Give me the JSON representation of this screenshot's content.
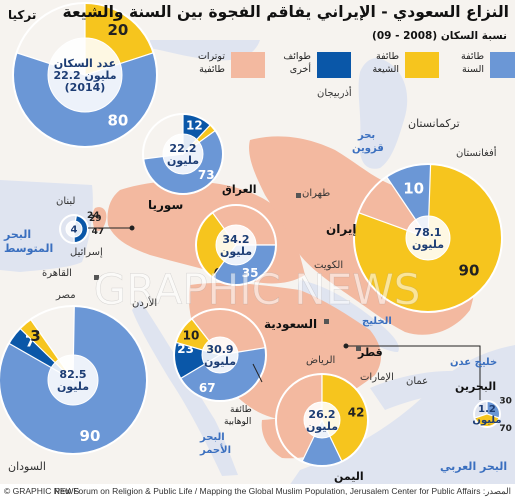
{
  "header": {
    "title": "النزاع السعودي - الإيراني يفاقم الفجوة بين السنة والشيعة",
    "subtitle": "نسبة السكان (2008 - 09)"
  },
  "legend": [
    {
      "label_1": "طائفة",
      "label_2": "السنة",
      "color": "#6b97d6"
    },
    {
      "label_1": "طائفة",
      "label_2": "الشيعة",
      "color": "#f6c51e"
    },
    {
      "label_1": "طوائف",
      "label_2": "أخرى",
      "color": "#0a57a8"
    },
    {
      "label_1": "توترات",
      "label_2": "طائفية",
      "color": "#f3b9a0"
    }
  ],
  "colors": {
    "sunni": "#6b97d6",
    "shia": "#f6c51e",
    "other": "#0a57a8",
    "tension": "#f3b9a0",
    "sea": "#dfe4f0",
    "land": "#f6f3ef"
  },
  "map_labels": {
    "turkey": "تركيا",
    "azerbaijan": "أذربيجان",
    "turkmenistan": "تركمانستان",
    "caspian_1": "بحر",
    "caspian_2": "قزوين",
    "afghanistan": "أفغانستان",
    "lebanon": "لبنان",
    "syria": "سوريا",
    "iraq": "العراق",
    "tehran": "طهران",
    "iran": "إيران",
    "med_1": "البحر",
    "med_2": "المتوسط",
    "israel": "إسرائيل",
    "cairo": "القاهرة",
    "egypt": "مصر",
    "jordan": "الأردن",
    "kuwait": "الكويت",
    "gulf": "الخليج",
    "saudi": "السعودية",
    "qatar": "قطر",
    "riyadh": "الرياض",
    "uae": "الإمارات",
    "oman": "عمان",
    "gulf_aden": "خليج عدن",
    "bahrain": "البحرين",
    "red_sea_1": "البحر",
    "red_sea_2": "الأحمر",
    "sudan": "السودان",
    "yemen": "اليمن",
    "arab_sea": "البحر العربي",
    "wahhabi_1": "طائفة",
    "wahhabi_2": "الوهابية"
  },
  "chart_data": [
    {
      "type": "pie",
      "country": "تركيا",
      "categories": [
        "السنة",
        "الشيعة"
      ],
      "values": [
        80,
        20
      ],
      "center_1": "عدد السكان",
      "center_2": "22.2 مليون",
      "center_3": "(2014)"
    },
    {
      "type": "pie",
      "country": "سوريا",
      "categories": [
        "السنة",
        "الشيعة",
        "طوائف أخرى"
      ],
      "values": [
        73,
        15,
        12
      ],
      "center_1": "22.2",
      "center_2": "مليون"
    },
    {
      "type": "pie",
      "country": "العراق",
      "categories": [
        "الشيعة",
        "السنة"
      ],
      "values": [
        65,
        35
      ],
      "center_1": "34.2",
      "center_2": "مليون"
    },
    {
      "type": "pie",
      "country": "إيران",
      "categories": [
        "الشيعة",
        "السنة"
      ],
      "values": [
        90,
        10
      ],
      "center_1": "78.1",
      "center_2": "مليون"
    },
    {
      "type": "pie",
      "country": "لبنان",
      "categories": [
        "الشيعة",
        "السنة",
        "طوائف أخرى"
      ],
      "values": [
        29,
        24,
        47
      ],
      "center_1": "4"
    },
    {
      "type": "pie",
      "country": "مصر",
      "categories": [
        "السنة",
        "طوائف أخرى",
        "الشيعة"
      ],
      "values": [
        90,
        7,
        3
      ],
      "center_1": "82.5",
      "center_2": "مليون"
    },
    {
      "type": "pie",
      "country": "السعودية",
      "categories": [
        "السنة",
        "طوائف أخرى",
        "الشيعة"
      ],
      "values": [
        67,
        23,
        10
      ],
      "center_1": "30.9",
      "center_2": "مليون"
    },
    {
      "type": "pie",
      "country": "اليمن",
      "categories": [
        "السنة",
        "الشيعة"
      ],
      "values": [
        56,
        42
      ],
      "center_1": "26.2",
      "center_2": "مليون"
    },
    {
      "type": "pie",
      "country": "البحرين",
      "categories": [
        "الشيعة",
        "السنة"
      ],
      "values": [
        70,
        30
      ],
      "center_1": "1.2",
      "center_2": "مليون"
    }
  ],
  "footer": {
    "credit": "© GRAPHIC NEWS",
    "source": "المصدر: Pew Forum on Religion & Public Life / Mapping the Global Muslim Population, Jerusalem Center for Public Affairs",
    "watermark": "GRAPHIC NEWS"
  }
}
